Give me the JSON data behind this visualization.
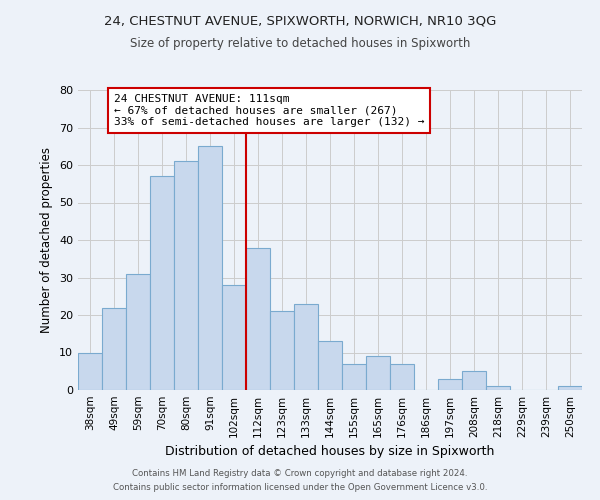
{
  "title1": "24, CHESTNUT AVENUE, SPIXWORTH, NORWICH, NR10 3QG",
  "title2": "Size of property relative to detached houses in Spixworth",
  "xlabel": "Distribution of detached houses by size in Spixworth",
  "ylabel": "Number of detached properties",
  "bar_labels": [
    "38sqm",
    "49sqm",
    "59sqm",
    "70sqm",
    "80sqm",
    "91sqm",
    "102sqm",
    "112sqm",
    "123sqm",
    "133sqm",
    "144sqm",
    "155sqm",
    "165sqm",
    "176sqm",
    "186sqm",
    "197sqm",
    "208sqm",
    "218sqm",
    "229sqm",
    "239sqm",
    "250sqm"
  ],
  "bar_heights": [
    10,
    22,
    31,
    57,
    61,
    65,
    28,
    38,
    21,
    23,
    13,
    7,
    9,
    7,
    0,
    3,
    5,
    1,
    0,
    0,
    1
  ],
  "bar_color": "#c8d8ed",
  "bar_edge_color": "#7aaacf",
  "property_line_index": 7,
  "annotation_title": "24 CHESTNUT AVENUE: 111sqm",
  "annotation_line1": "← 67% of detached houses are smaller (267)",
  "annotation_line2": "33% of semi-detached houses are larger (132) →",
  "annotation_box_color": "#ffffff",
  "annotation_box_edge_color": "#cc0000",
  "property_line_color": "#cc0000",
  "ylim": [
    0,
    80
  ],
  "yticks": [
    0,
    10,
    20,
    30,
    40,
    50,
    60,
    70,
    80
  ],
  "grid_color": "#cccccc",
  "background_color": "#edf2f9",
  "footer_line1": "Contains HM Land Registry data © Crown copyright and database right 2024.",
  "footer_line2": "Contains public sector information licensed under the Open Government Licence v3.0."
}
